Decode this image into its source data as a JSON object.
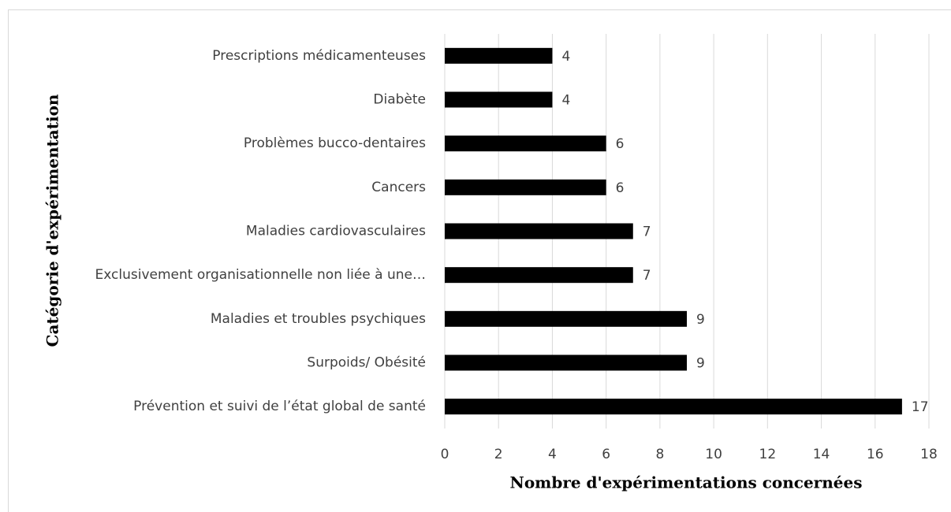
{
  "chart_data": {
    "type": "barh",
    "categories": [
      "Prescriptions médicamenteuses",
      "Diabète",
      "Problèmes bucco-dentaires",
      "Cancers",
      "Maladies cardiovasculaires",
      "Exclusivement organisationnelle non liée à une…",
      "Maladies et troubles psychiques",
      "Surpoids/ Obésité",
      "Prévention et suivi de l’état global de santé"
    ],
    "values": [
      4,
      4,
      6,
      6,
      7,
      7,
      9,
      9,
      17
    ],
    "color": "#000000",
    "xlim": [
      0,
      18
    ],
    "xticks": [
      0,
      2,
      4,
      6,
      8,
      10,
      12,
      14,
      16,
      18
    ],
    "grid": true,
    "xlabel": "Nombre d'expérimentations concernées",
    "ylabel": "Catégorie d'expérimentation"
  }
}
